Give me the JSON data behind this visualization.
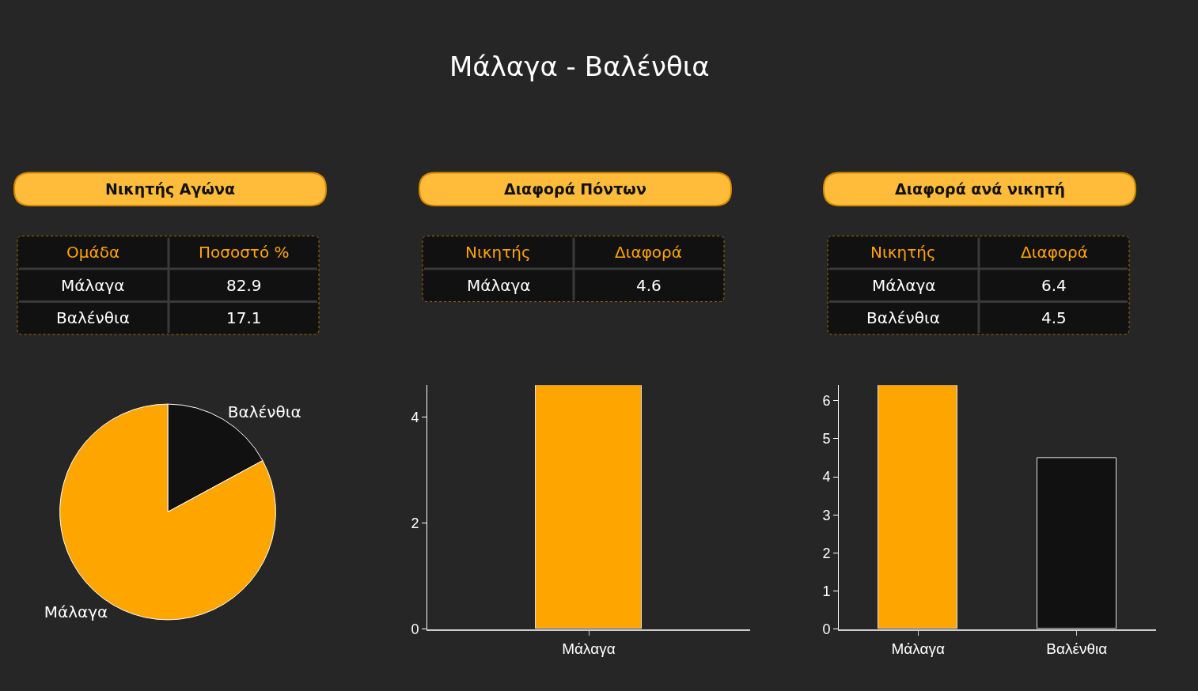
{
  "chart_data": [
    {
      "type": "other",
      "title": "Νικητής Αγώνα",
      "annotations": [
        "Μάλαγα - Βαλένθια"
      ],
      "xlabel": "Ομάδα",
      "ylabel": "Ποσοστό %",
      "categories": [
        "Μάλαγα",
        "Βαλένθια"
      ],
      "values": [
        82.9,
        17.1
      ],
      "data_labels": true
    },
    {
      "type": "pie",
      "categories": [
        "Βαλένθια",
        "Μάλαγα"
      ],
      "values": [
        17.1,
        82.9
      ],
      "colors": [
        "#111111",
        "#ffa500"
      ]
    },
    {
      "type": "other",
      "title": "Διαφορά Πόντων",
      "xlabel": "Νικητής",
      "ylabel": "Διαφορά",
      "categories": [
        "Μάλαγα"
      ],
      "values": [
        4.6
      ],
      "data_labels": true
    },
    {
      "type": "bar",
      "categories": [
        "Μάλαγα"
      ],
      "values": [
        4.6
      ],
      "color": "#ffa500",
      "ylim": [
        0,
        4.6
      ],
      "yticks": [
        0,
        2,
        4
      ]
    },
    {
      "type": "other",
      "title": "Διαφορά ανά νικητή",
      "xlabel": "Νικητής",
      "ylabel": "Διαφορά",
      "categories": [
        "Μάλαγα",
        "Βαλένθια"
      ],
      "values": [
        6.4,
        4.5
      ],
      "data_labels": true
    },
    {
      "type": "bar",
      "categories": [
        "Μάλαγα",
        "Βαλένθια"
      ],
      "values": [
        6.4,
        4.5
      ],
      "colors": [
        "#ffa500",
        "#111111"
      ],
      "ylim": [
        0,
        6.4
      ],
      "yticks": [
        0,
        1,
        2,
        3,
        4,
        5,
        6
      ]
    }
  ]
}
